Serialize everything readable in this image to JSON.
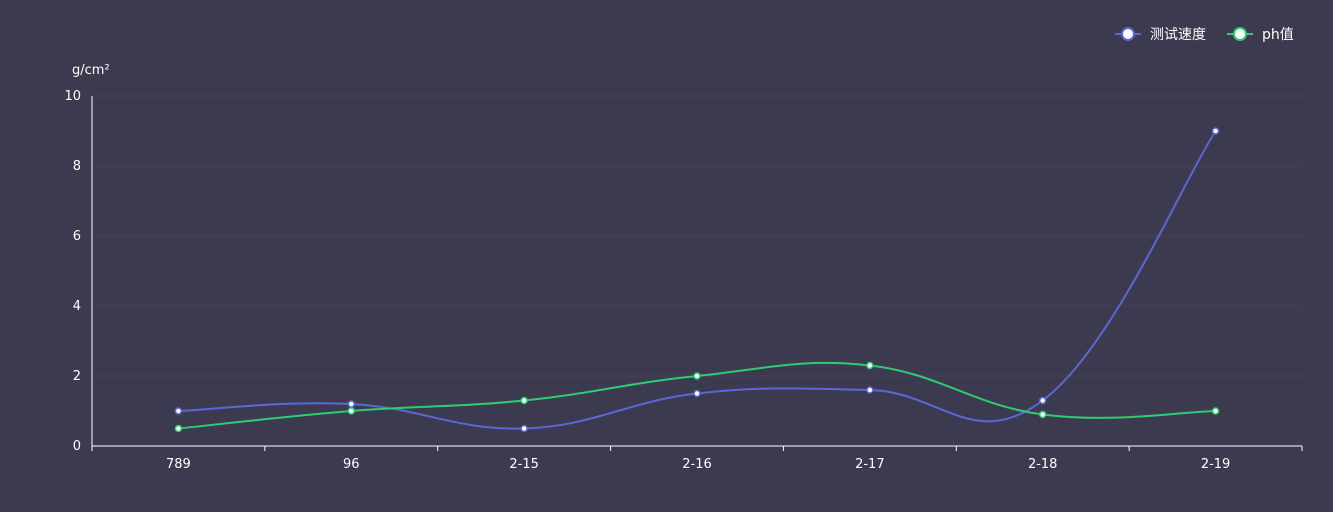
{
  "chart_data": {
    "type": "line",
    "ylabel": "g/cm²",
    "categories": [
      "789",
      "96",
      "2-15",
      "2-16",
      "2-17",
      "2-18",
      "2-19"
    ],
    "ylim": [
      0,
      10
    ],
    "yticks": [
      0,
      2,
      4,
      6,
      8,
      10
    ],
    "grid": true,
    "legend_position": "top-right",
    "series": [
      {
        "name": "测试速度",
        "color": "#5a67d8",
        "values": [
          1.0,
          1.2,
          0.5,
          1.5,
          1.6,
          1.3,
          9.0
        ]
      },
      {
        "name": "ph值",
        "color": "#2ecc71",
        "values": [
          0.5,
          1.0,
          1.3,
          2.0,
          2.3,
          0.9,
          1.0
        ]
      }
    ]
  }
}
